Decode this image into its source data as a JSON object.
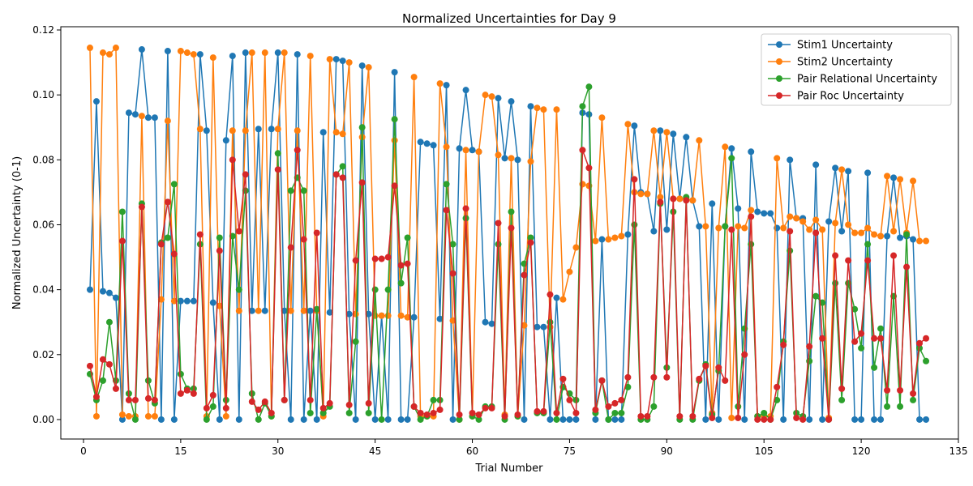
{
  "chart_data": {
    "type": "line",
    "title": "Normalized Uncertainties for Day 9",
    "xlabel": "Trial Number",
    "ylabel": "Normalized Uncertainty (0-1)",
    "xlim": [
      -3.5,
      135
    ],
    "ylim": [
      -0.006,
      0.121
    ],
    "xticks": [
      0,
      15,
      30,
      45,
      60,
      75,
      90,
      105,
      120,
      135
    ],
    "yticks": [
      0.0,
      0.02,
      0.04,
      0.06,
      0.08,
      0.1,
      0.12
    ],
    "ytick_labels": [
      "0.00",
      "0.02",
      "0.04",
      "0.06",
      "0.08",
      "0.10",
      "0.12"
    ],
    "grid": false,
    "legend_position": "upper right",
    "x": [
      1,
      2,
      3,
      4,
      5,
      6,
      7,
      8,
      9,
      10,
      11,
      12,
      13,
      14,
      15,
      16,
      17,
      18,
      19,
      20,
      21,
      22,
      23,
      24,
      25,
      26,
      27,
      28,
      29,
      30,
      31,
      32,
      33,
      34,
      35,
      36,
      37,
      38,
      39,
      40,
      41,
      42,
      43,
      44,
      45,
      46,
      47,
      48,
      49,
      50,
      51,
      52,
      53,
      54,
      55,
      56,
      57,
      58,
      59,
      60,
      61,
      62,
      63,
      64,
      65,
      66,
      67,
      68,
      69,
      70,
      71,
      72,
      73,
      74,
      75,
      76,
      77,
      78,
      79,
      80,
      81,
      82,
      83,
      84,
      85,
      86,
      87,
      88,
      89,
      90,
      91,
      92,
      93,
      94,
      95,
      96,
      97,
      98,
      99,
      100,
      101,
      102,
      103,
      104,
      105,
      106,
      107,
      108,
      109,
      110,
      111,
      112,
      113,
      114,
      115,
      116,
      117,
      118,
      119,
      120,
      121,
      122,
      123,
      124,
      125,
      126,
      127,
      128,
      129,
      130
    ],
    "series": [
      {
        "name": "Stim1 Uncertainty",
        "color": "#1f77b4",
        "values": [
          0.04,
          0.098,
          0.0395,
          0.039,
          0.0375,
          0.0,
          0.0945,
          0.094,
          0.114,
          0.093,
          0.093,
          0.0,
          0.1135,
          0.0,
          0.0365,
          0.0365,
          0.0365,
          0.1125,
          0.089,
          0.036,
          0.0,
          0.086,
          0.112,
          0.0,
          0.113,
          0.0335,
          0.0895,
          0.0335,
          0.0895,
          0.113,
          0.0335,
          0.0,
          0.1125,
          0.0,
          0.0335,
          0.0,
          0.0885,
          0.033,
          0.111,
          0.1105,
          0.0325,
          0.0,
          0.109,
          0.0325,
          0.0,
          0.032,
          0.0,
          0.107,
          0.0,
          0.0,
          0.0315,
          0.0855,
          0.085,
          0.0845,
          0.031,
          0.103,
          0.0,
          0.0835,
          0.1015,
          0.083,
          0.0825,
          0.03,
          0.0295,
          0.099,
          0.0805,
          0.098,
          0.08,
          0.0,
          0.0965,
          0.0285,
          0.0285,
          0.0,
          0.0375,
          0.0,
          0.0,
          0.0,
          0.0945,
          0.094,
          0.0,
          0.0555,
          0.0,
          0.0,
          0.0,
          0.057,
          0.0905,
          0.07,
          0.0695,
          0.058,
          0.089,
          0.0585,
          0.088,
          0.068,
          0.087,
          0.0675,
          0.0595,
          0.0,
          0.0665,
          0.0,
          0.0595,
          0.0835,
          0.065,
          0.0,
          0.0825,
          0.064,
          0.0635,
          0.0635,
          0.059,
          0.0,
          0.08,
          0.062,
          0.062,
          0.0,
          0.0785,
          0.0,
          0.061,
          0.0775,
          0.058,
          0.0765,
          0.0,
          0.0,
          0.076,
          0.0,
          0.0,
          0.0565,
          0.0745,
          0.056,
          0.0565,
          0.0555,
          0.0,
          0.0
        ]
      },
      {
        "name": "Stim2 Uncertainty",
        "color": "#ff7f0e",
        "values": [
          0.1145,
          0.001,
          0.113,
          0.1125,
          0.1145,
          0.0015,
          0.001,
          0.001,
          0.0935,
          0.001,
          0.001,
          0.037,
          0.092,
          0.0365,
          0.1135,
          0.113,
          0.1125,
          0.0895,
          0.001,
          0.1115,
          0.035,
          0.001,
          0.089,
          0.0335,
          0.089,
          0.113,
          0.0335,
          0.113,
          0.001,
          0.0895,
          0.113,
          0.0335,
          0.089,
          0.0335,
          0.112,
          0.0335,
          0.001,
          0.111,
          0.0885,
          0.088,
          0.11,
          0.0325,
          0.087,
          0.1085,
          0.032,
          0.032,
          0.032,
          0.086,
          0.032,
          0.0315,
          0.1055,
          0.001,
          0.001,
          0.001,
          0.1035,
          0.084,
          0.0305,
          0.0,
          0.083,
          0.001,
          0.0825,
          0.1,
          0.0995,
          0.0815,
          0.0015,
          0.0805,
          0.001,
          0.029,
          0.0795,
          0.096,
          0.0955,
          0.0285,
          0.0955,
          0.037,
          0.0455,
          0.053,
          0.0725,
          0.072,
          0.055,
          0.093,
          0.0555,
          0.056,
          0.0565,
          0.091,
          0.07,
          0.0695,
          0.0695,
          0.089,
          0.0685,
          0.0885,
          0.068,
          0.068,
          0.068,
          0.0675,
          0.086,
          0.0595,
          0.002,
          0.059,
          0.084,
          0.0005,
          0.0595,
          0.059,
          0.0645,
          0.001,
          0.001,
          0.001,
          0.0805,
          0.059,
          0.0625,
          0.062,
          0.061,
          0.0585,
          0.0615,
          0.0585,
          0.0005,
          0.0605,
          0.077,
          0.06,
          0.0575,
          0.0575,
          0.059,
          0.057,
          0.0565,
          0.075,
          0.058,
          0.074,
          0.0575,
          0.0735,
          0.055,
          0.055
        ]
      },
      {
        "name": "Pair Relational Uncertainty",
        "color": "#2ca02c",
        "values": [
          0.014,
          0.006,
          0.012,
          0.03,
          0.012,
          0.064,
          0.008,
          0.0,
          0.0665,
          0.012,
          0.005,
          0.0545,
          0.056,
          0.0725,
          0.014,
          0.0095,
          0.0095,
          0.054,
          0.0,
          0.004,
          0.056,
          0.006,
          0.0565,
          0.04,
          0.0705,
          0.008,
          0.0,
          0.005,
          0.001,
          0.082,
          0.006,
          0.0705,
          0.0745,
          0.0705,
          0.002,
          0.034,
          0.002,
          0.004,
          0.0755,
          0.078,
          0.002,
          0.024,
          0.09,
          0.002,
          0.04,
          0.0,
          0.04,
          0.0925,
          0.042,
          0.056,
          0.004,
          0.0,
          0.001,
          0.006,
          0.006,
          0.0725,
          0.054,
          0.0,
          0.062,
          0.001,
          0.0,
          0.004,
          0.004,
          0.054,
          0.0,
          0.064,
          0.001,
          0.048,
          0.056,
          0.002,
          0.002,
          0.03,
          0.0,
          0.01,
          0.008,
          0.006,
          0.0965,
          0.1025,
          0.002,
          0.012,
          0.0,
          0.002,
          0.002,
          0.01,
          0.06,
          0.0,
          0.0,
          0.004,
          0.0665,
          0.016,
          0.064,
          0.0,
          0.0685,
          0.0,
          0.012,
          0.017,
          0.0015,
          0.015,
          0.0595,
          0.0805,
          0.004,
          0.028,
          0.054,
          0.001,
          0.002,
          0.0,
          0.006,
          0.024,
          0.052,
          0.002,
          0.001,
          0.018,
          0.038,
          0.036,
          0.0,
          0.042,
          0.006,
          0.042,
          0.034,
          0.022,
          0.054,
          0.016,
          0.028,
          0.004,
          0.038,
          0.004,
          0.057,
          0.006,
          0.022,
          0.018
        ]
      },
      {
        "name": "Pair Roc Uncertainty",
        "color": "#d62728",
        "values": [
          0.0165,
          0.007,
          0.0185,
          0.017,
          0.0095,
          0.055,
          0.006,
          0.006,
          0.0655,
          0.0065,
          0.006,
          0.054,
          0.067,
          0.051,
          0.008,
          0.009,
          0.008,
          0.057,
          0.0035,
          0.0075,
          0.052,
          0.0035,
          0.08,
          0.058,
          0.0755,
          0.0055,
          0.003,
          0.0055,
          0.002,
          0.077,
          0.006,
          0.053,
          0.083,
          0.0555,
          0.006,
          0.0575,
          0.0035,
          0.005,
          0.0755,
          0.0745,
          0.0045,
          0.049,
          0.073,
          0.005,
          0.0495,
          0.0495,
          0.05,
          0.072,
          0.0475,
          0.048,
          0.004,
          0.002,
          0.0015,
          0.002,
          0.003,
          0.0645,
          0.045,
          0.0015,
          0.065,
          0.002,
          0.0015,
          0.0035,
          0.0035,
          0.0605,
          0.001,
          0.059,
          0.0015,
          0.0445,
          0.0545,
          0.0025,
          0.0025,
          0.0385,
          0.002,
          0.0125,
          0.006,
          0.002,
          0.083,
          0.0775,
          0.003,
          0.012,
          0.004,
          0.005,
          0.006,
          0.013,
          0.074,
          0.001,
          0.001,
          0.013,
          0.067,
          0.013,
          0.068,
          0.001,
          0.0675,
          0.001,
          0.0125,
          0.0165,
          0.0005,
          0.016,
          0.012,
          0.0585,
          0.0005,
          0.02,
          0.0625,
          0.0,
          0.0,
          0.0,
          0.01,
          0.023,
          0.058,
          0.0005,
          0.0,
          0.0225,
          0.0575,
          0.025,
          0.0,
          0.0505,
          0.0095,
          0.049,
          0.024,
          0.0265,
          0.049,
          0.025,
          0.025,
          0.009,
          0.0505,
          0.009,
          0.047,
          0.008,
          0.0235,
          0.025
        ]
      }
    ]
  }
}
